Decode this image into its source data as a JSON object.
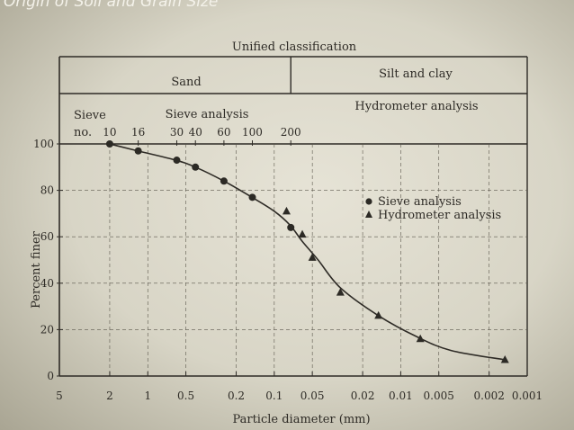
{
  "header": {
    "title": "Origin of Soil and Grain Size"
  },
  "chart_data": {
    "type": "scatter",
    "top_label": "Unified classification",
    "classification": {
      "left": "Sand",
      "right": "Silt and clay"
    },
    "method_row": {
      "sieve_label": "Sieve",
      "sieve_no_label": "no.",
      "sieve_analysis_label": "Sieve analysis",
      "hydrometer_analysis_label": "Hydrometer analysis",
      "sieve_numbers": [
        "10",
        "16",
        "30",
        "40",
        "60",
        "100",
        "200"
      ]
    },
    "xlabel": "Particle diameter (mm)",
    "ylabel": "Percent finer",
    "x_scale": "log",
    "x_reversed": true,
    "xlim": [
      5,
      0.001
    ],
    "ylim": [
      0,
      100
    ],
    "x_ticks": [
      "5",
      "2",
      "1",
      "0.5",
      "0.2",
      "0.1",
      "0.05",
      "0.02",
      "0.01",
      "0.005",
      "0.002",
      "0.001"
    ],
    "y_ticks": [
      "100",
      "80",
      "60",
      "40",
      "20",
      "0"
    ],
    "grid": true,
    "legend_position": "right",
    "series": [
      {
        "name": "Sieve analysis",
        "marker": "circle",
        "color": "#2c2a25",
        "x": [
          2.0,
          1.19,
          0.59,
          0.42,
          0.25,
          0.149,
          0.074
        ],
        "y": [
          100,
          97,
          93,
          90,
          84,
          77,
          64
        ]
      },
      {
        "name": "Hydrometer analysis",
        "marker": "triangle",
        "color": "#2c2a25",
        "x": [
          0.08,
          0.06,
          0.05,
          0.03,
          0.015,
          0.007,
          0.0015
        ],
        "y": [
          71,
          61,
          51,
          36,
          26,
          16,
          7
        ]
      }
    ],
    "fitted_curve": {
      "x": [
        2.0,
        1.2,
        0.6,
        0.42,
        0.25,
        0.15,
        0.1,
        0.075,
        0.06,
        0.045,
        0.03,
        0.015,
        0.0075,
        0.004,
        0.0015
      ],
      "y": [
        100,
        97,
        93,
        90,
        84,
        77,
        71,
        65,
        58,
        50,
        38,
        26,
        17,
        11,
        7
      ]
    }
  }
}
